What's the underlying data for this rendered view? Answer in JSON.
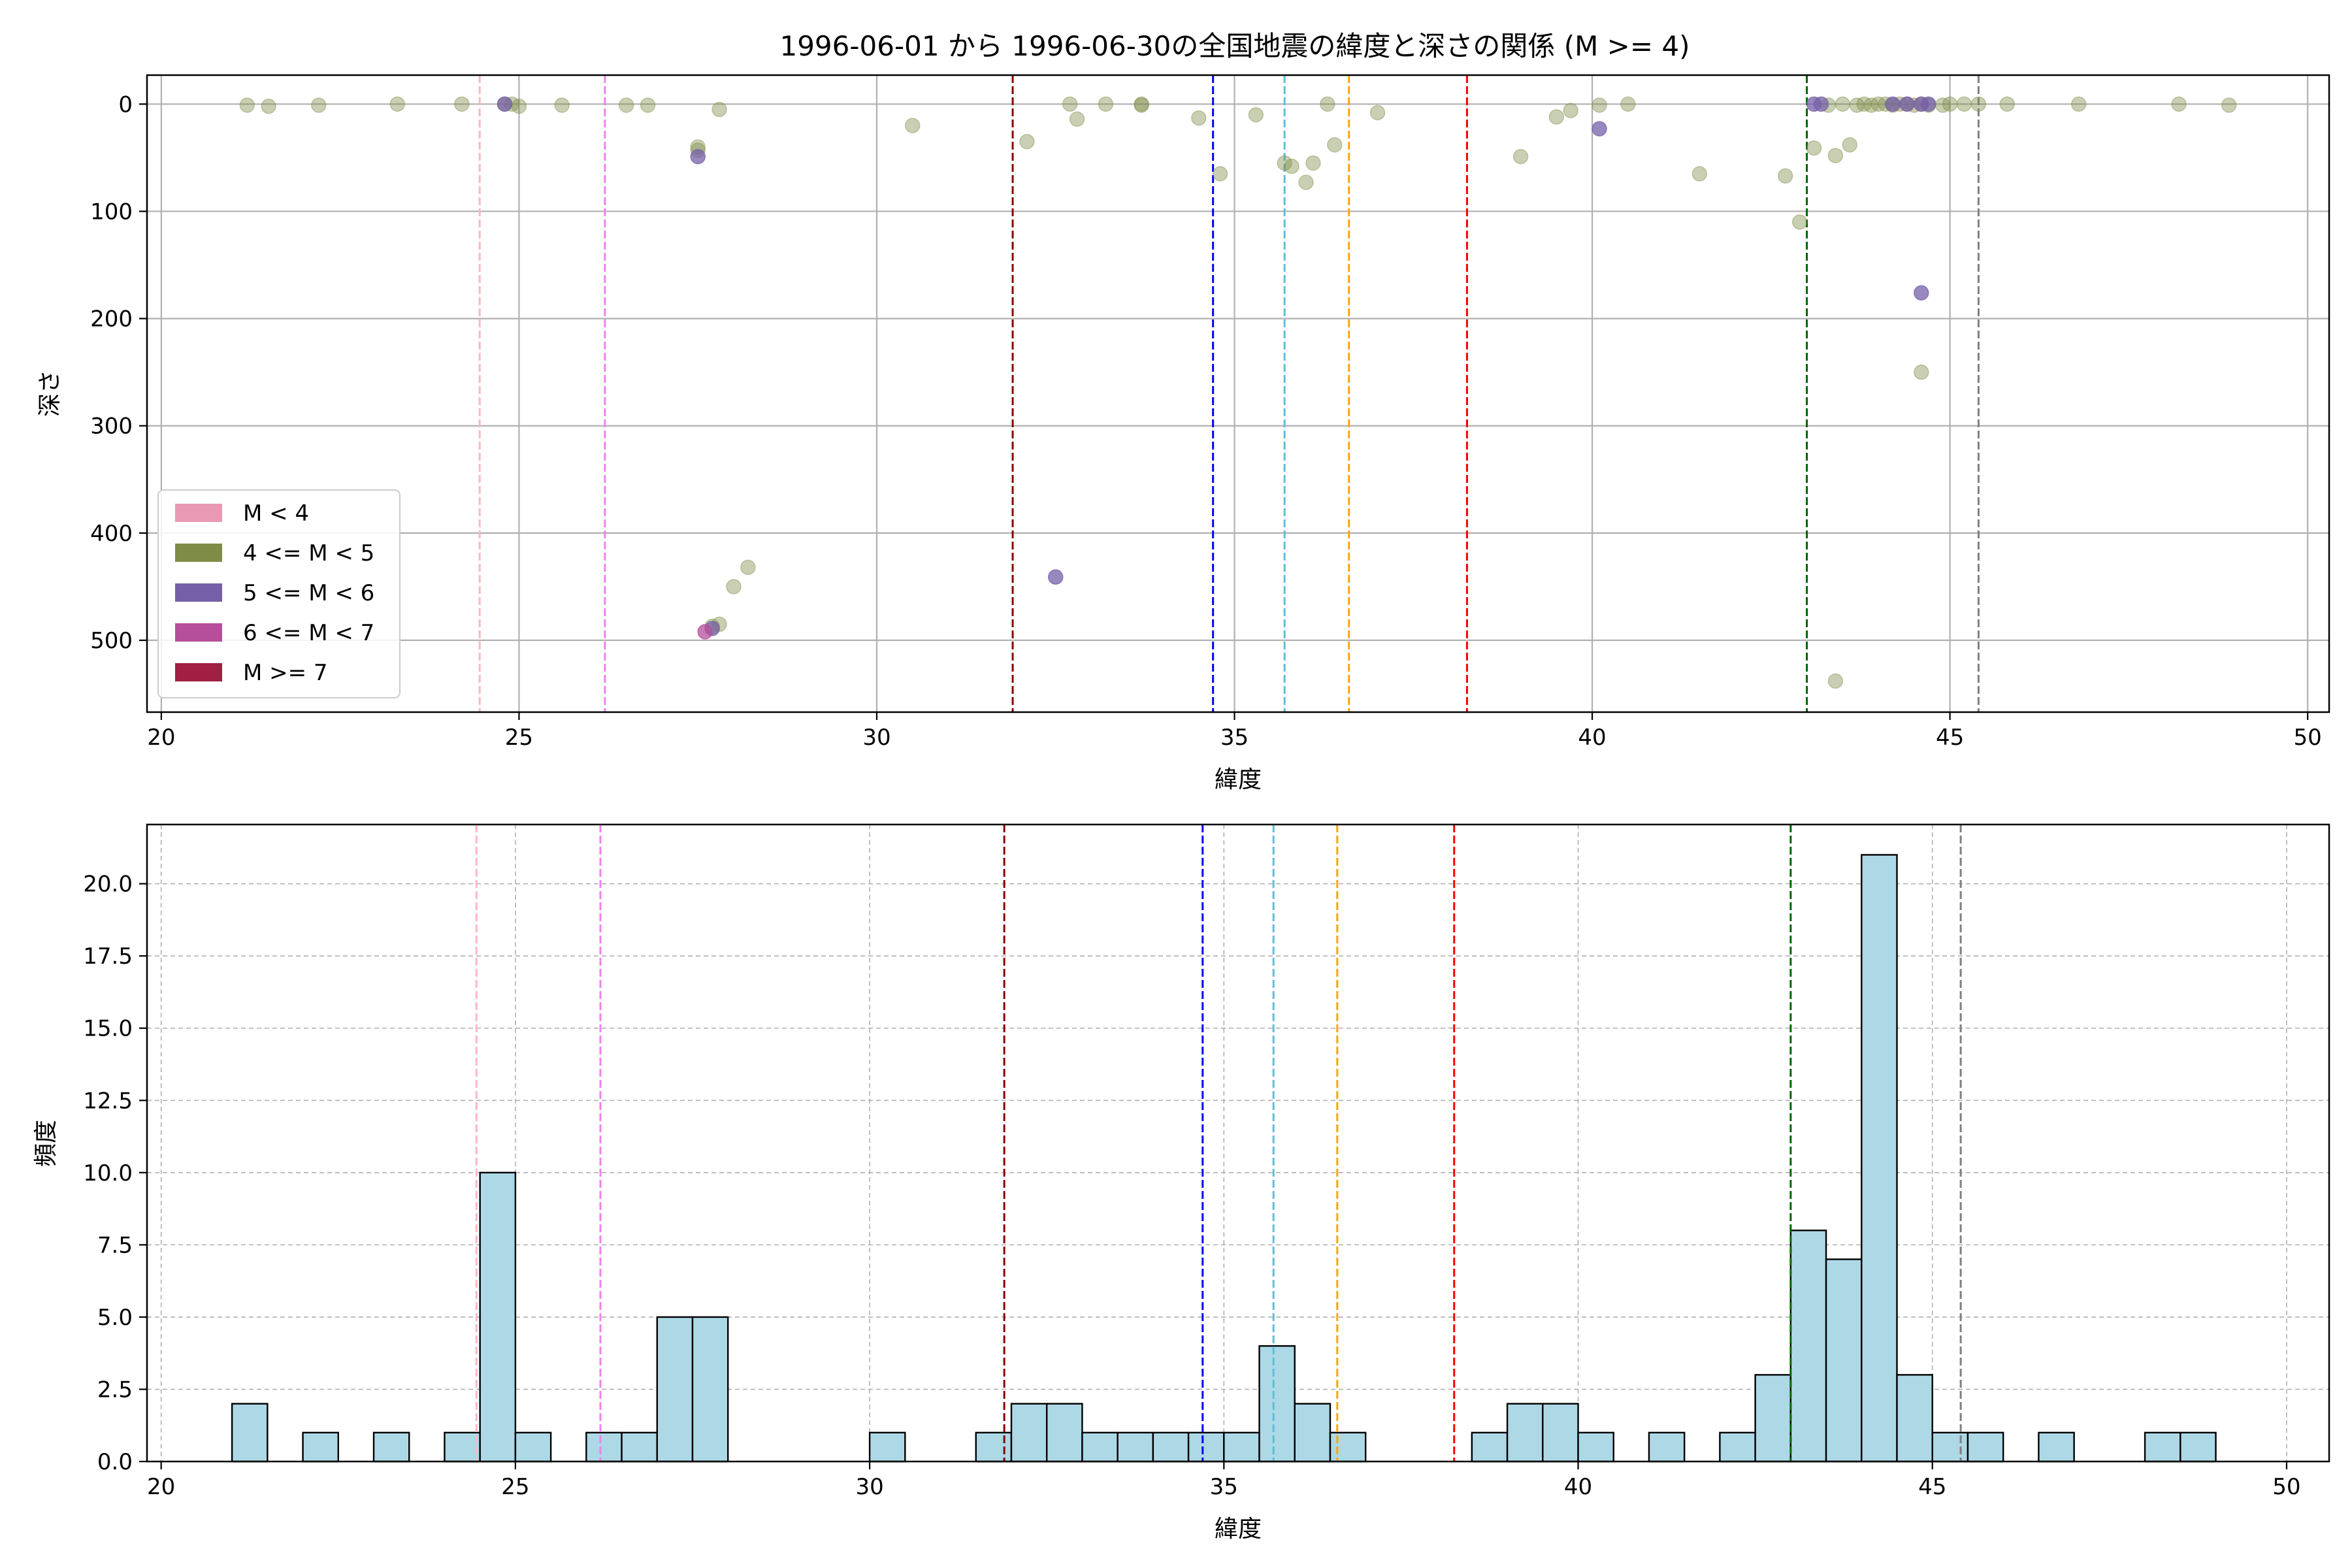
{
  "chart_data": [
    {
      "type": "scatter",
      "title": "1996-06-01 から 1996-06-30の全国地震の緯度と深さの関係 (M >= 4)",
      "xlabel": "緯度",
      "ylabel": "深さ",
      "xlim": [
        19.8,
        50.3
      ],
      "ylim": [
        567,
        -27
      ],
      "y_inverted": true,
      "grid": true,
      "legend_placement": "lower-left",
      "xticks": [
        "20",
        "25",
        "30",
        "35",
        "40",
        "45",
        "50"
      ],
      "yticks": [
        "0",
        "100",
        "200",
        "300",
        "400",
        "500"
      ],
      "legend": [
        {
          "label": "M < 4",
          "color": "#e89ab4"
        },
        {
          "label": "4 <= M < 5",
          "color": "#7f8c48"
        },
        {
          "label": "5 <= M < 6",
          "color": "#7560a8"
        },
        {
          "label": "6 <= M < 7",
          "color": "#b54f9b"
        },
        {
          "label": "M >= 7",
          "color": "#a01f43"
        }
      ],
      "series": [
        {
          "name": "4 <= M < 5",
          "color": "#7f8c48",
          "points": [
            [
              21.2,
              1
            ],
            [
              21.5,
              2
            ],
            [
              22.2,
              1
            ],
            [
              23.3,
              0
            ],
            [
              24.2,
              0
            ],
            [
              24.8,
              0
            ],
            [
              24.9,
              0
            ],
            [
              25.0,
              2
            ],
            [
              25.6,
              1
            ],
            [
              26.5,
              1
            ],
            [
              26.8,
              1
            ],
            [
              27.5,
              40
            ],
            [
              27.5,
              43
            ],
            [
              27.8,
              5
            ],
            [
              27.7,
              487
            ],
            [
              27.8,
              485
            ],
            [
              28.0,
              450
            ],
            [
              28.2,
              432
            ],
            [
              30.5,
              20
            ],
            [
              32.1,
              35
            ],
            [
              32.7,
              0
            ],
            [
              32.8,
              14
            ],
            [
              33.2,
              0
            ],
            [
              33.7,
              0
            ],
            [
              33.7,
              1
            ],
            [
              34.5,
              13
            ],
            [
              34.8,
              65
            ],
            [
              35.3,
              10
            ],
            [
              35.7,
              55
            ],
            [
              35.8,
              58
            ],
            [
              36.0,
              73
            ],
            [
              36.1,
              55
            ],
            [
              36.3,
              0
            ],
            [
              36.4,
              38
            ],
            [
              37.0,
              8
            ],
            [
              39.0,
              49
            ],
            [
              39.5,
              12
            ],
            [
              39.7,
              6
            ],
            [
              40.1,
              1
            ],
            [
              40.5,
              0
            ],
            [
              41.5,
              65
            ],
            [
              42.7,
              67
            ],
            [
              42.9,
              110
            ],
            [
              43.1,
              41
            ],
            [
              43.3,
              1
            ],
            [
              43.4,
              48
            ],
            [
              43.5,
              0
            ],
            [
              43.6,
              38
            ],
            [
              43.7,
              1
            ],
            [
              43.8,
              0
            ],
            [
              43.9,
              1
            ],
            [
              44.0,
              0
            ],
            [
              44.1,
              0
            ],
            [
              44.2,
              1
            ],
            [
              44.3,
              0
            ],
            [
              44.4,
              0
            ],
            [
              44.5,
              1
            ],
            [
              44.6,
              0
            ],
            [
              44.6,
              250
            ],
            [
              43.4,
              538
            ],
            [
              44.7,
              1
            ],
            [
              44.9,
              1
            ],
            [
              45.0,
              0
            ],
            [
              45.2,
              0
            ],
            [
              45.4,
              0
            ],
            [
              45.8,
              0
            ],
            [
              46.8,
              0
            ],
            [
              48.2,
              0
            ],
            [
              48.9,
              1
            ]
          ]
        },
        {
          "name": "5 <= M < 6",
          "color": "#7560a8",
          "points": [
            [
              24.8,
              0
            ],
            [
              27.5,
              49
            ],
            [
              27.7,
              489
            ],
            [
              32.5,
              441
            ],
            [
              40.1,
              23
            ],
            [
              43.1,
              0
            ],
            [
              43.2,
              0
            ],
            [
              44.2,
              0
            ],
            [
              44.4,
              0
            ],
            [
              44.6,
              0
            ],
            [
              44.7,
              0
            ],
            [
              44.6,
              176
            ]
          ]
        },
        {
          "name": "6 <= M < 7",
          "color": "#b54f9b",
          "points": [
            [
              27.6,
              492
            ]
          ]
        }
      ],
      "vlines": [
        {
          "x": 24.45,
          "color": "#ffb6c1"
        },
        {
          "x": 26.2,
          "color": "#ee82ee"
        },
        {
          "x": 31.9,
          "color": "#8b0000"
        },
        {
          "x": 34.7,
          "color": "#0000ff"
        },
        {
          "x": 35.7,
          "color": "#5bc0d6"
        },
        {
          "x": 36.6,
          "color": "#ffa500"
        },
        {
          "x": 38.25,
          "color": "#ff0000"
        },
        {
          "x": 43.0,
          "color": "#006400"
        },
        {
          "x": 45.4,
          "color": "#808080"
        }
      ]
    },
    {
      "type": "bar",
      "title": "",
      "xlabel": "緯度",
      "ylabel": "頻度",
      "xlim": [
        19.8,
        50.6
      ],
      "ylim": [
        0,
        22.05
      ],
      "grid": true,
      "bar_color": "#add8e6",
      "xticks": [
        "20",
        "25",
        "30",
        "35",
        "40",
        "45",
        "50"
      ],
      "yticks": [
        "0.0",
        "2.5",
        "5.0",
        "7.5",
        "10.0",
        "12.5",
        "15.0",
        "17.5",
        "20.0"
      ],
      "bin_width": 0.5,
      "bins": [
        [
          21.25,
          2
        ],
        [
          22.25,
          1
        ],
        [
          23.25,
          1
        ],
        [
          24.25,
          1
        ],
        [
          24.75,
          10
        ],
        [
          25.25,
          1
        ],
        [
          26.25,
          1
        ],
        [
          26.75,
          1
        ],
        [
          27.25,
          5
        ],
        [
          27.75,
          5
        ],
        [
          30.25,
          1
        ],
        [
          31.75,
          1
        ],
        [
          32.25,
          2
        ],
        [
          32.75,
          2
        ],
        [
          33.25,
          1
        ],
        [
          33.75,
          1
        ],
        [
          34.25,
          1
        ],
        [
          34.75,
          1
        ],
        [
          35.25,
          1
        ],
        [
          35.75,
          4
        ],
        [
          36.25,
          2
        ],
        [
          36.75,
          1
        ],
        [
          38.75,
          1
        ],
        [
          39.25,
          2
        ],
        [
          39.75,
          2
        ],
        [
          40.25,
          1
        ],
        [
          41.25,
          1
        ],
        [
          42.25,
          1
        ],
        [
          42.75,
          3
        ],
        [
          43.25,
          8
        ],
        [
          43.75,
          7
        ],
        [
          44.25,
          21
        ],
        [
          44.75,
          3
        ],
        [
          45.25,
          1
        ],
        [
          45.75,
          1
        ],
        [
          46.75,
          1
        ],
        [
          48.25,
          1
        ],
        [
          48.75,
          1
        ]
      ],
      "vlines": [
        {
          "x": 24.45,
          "color": "#ffb6c1"
        },
        {
          "x": 26.2,
          "color": "#ee82ee"
        },
        {
          "x": 31.9,
          "color": "#8b0000"
        },
        {
          "x": 34.7,
          "color": "#0000ff"
        },
        {
          "x": 35.7,
          "color": "#5bc0d6"
        },
        {
          "x": 36.6,
          "color": "#ffa500"
        },
        {
          "x": 38.25,
          "color": "#ff0000"
        },
        {
          "x": 43.0,
          "color": "#006400"
        },
        {
          "x": 45.4,
          "color": "#808080"
        }
      ]
    }
  ]
}
